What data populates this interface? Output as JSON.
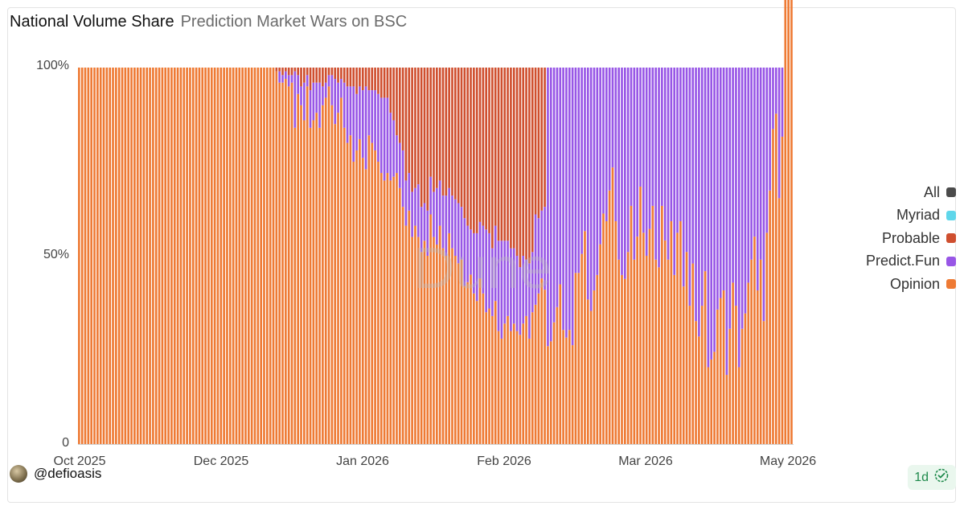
{
  "header": {
    "title": "National Volume Share",
    "subtitle": "Prediction Market Wars on BSC"
  },
  "footer": {
    "author": "@defioasis",
    "refresh": "1d"
  },
  "colors": {
    "Opinion": "#ee7a34",
    "Predict.Fun": "#9856e6",
    "Probable": "#cf4f2f",
    "Myriad": "#5fd6ea",
    "All": "#4b4b4b"
  },
  "legend": [
    {
      "label": "All",
      "color": "#4b4b4b"
    },
    {
      "label": "Myriad",
      "color": "#5fd6ea"
    },
    {
      "label": "Probable",
      "color": "#cf4f2f"
    },
    {
      "label": "Predict.Fun",
      "color": "#9856e6"
    },
    {
      "label": "Opinion",
      "color": "#ee7a34"
    }
  ],
  "watermark": "Dune",
  "chart_data": {
    "type": "bar",
    "stacked": true,
    "normalized": true,
    "title": "National Volume Share",
    "subtitle": "Prediction Market Wars on BSC",
    "y_ticks": [
      "0",
      "50%",
      "100%"
    ],
    "x_ticks": [
      "Oct 2025",
      "Dec 2025",
      "Jan 2026",
      "Feb 2026",
      "Mar 2026",
      "May 2026"
    ],
    "ylim": [
      0,
      100
    ],
    "legend_position": "right",
    "x_range": [
      "2025-10-01",
      "2026-05-01"
    ],
    "series_order": [
      "Opinion",
      "Predict.Fun",
      "Probable",
      "Myriad"
    ],
    "series": [
      {
        "name": "Opinion",
        "values": [
          100,
          100,
          100,
          100,
          100,
          100,
          100,
          100,
          100,
          100,
          100,
          100,
          100,
          100,
          100,
          100,
          100,
          100,
          100,
          100,
          100,
          100,
          100,
          100,
          100,
          100,
          100,
          100,
          100,
          100,
          100,
          100,
          100,
          100,
          100,
          100,
          100,
          100,
          100,
          100,
          100,
          100,
          100,
          100,
          100,
          100,
          100,
          100,
          100,
          100,
          100,
          100,
          100,
          100,
          100,
          100,
          100,
          100,
          100,
          100,
          100,
          100,
          100,
          100,
          99,
          96,
          96,
          97,
          95,
          96,
          84,
          93,
          90,
          86,
          95,
          84,
          86,
          88,
          84,
          90,
          92,
          95,
          90,
          85,
          88,
          92,
          84,
          80,
          82,
          75,
          78,
          81,
          76,
          73,
          82,
          80,
          78,
          75,
          72,
          70,
          72,
          70,
          71,
          72,
          68,
          63,
          58,
          62,
          55,
          58,
          55,
          51,
          54,
          50,
          61,
          55,
          53,
          58,
          52,
          50,
          56,
          52,
          50,
          48,
          49,
          42,
          43,
          45,
          40,
          38,
          44,
          40,
          35,
          36,
          34,
          38,
          30,
          28,
          32,
          34,
          30,
          32,
          30,
          29,
          32,
          34,
          28,
          35,
          37,
          40,
          44,
          41,
          26,
          27,
          32,
          36,
          42,
          30,
          28,
          30,
          26,
          45,
          45,
          50,
          56,
          38,
          35,
          40,
          44,
          52,
          60,
          58,
          66,
          72,
          58,
          48,
          44,
          43,
          50,
          62,
          48,
          54,
          67,
          55,
          49,
          56,
          62,
          48,
          46,
          62,
          53,
          48,
          58,
          44,
          55,
          58,
          41,
          50,
          36,
          47,
          32,
          28,
          36,
          45,
          20,
          22,
          24,
          35,
          38,
          40,
          18,
          30,
          42,
          36,
          20,
          30,
          34,
          42,
          48,
          54,
          40,
          48,
          32,
          55,
          66,
          82,
          86,
          64,
          80,
          58,
          20,
          32
        ]
      },
      {
        "name": "Predict.Fun",
        "values": [
          0,
          0,
          0,
          0,
          0,
          0,
          0,
          0,
          0,
          0,
          0,
          0,
          0,
          0,
          0,
          0,
          0,
          0,
          0,
          0,
          0,
          0,
          0,
          0,
          0,
          0,
          0,
          0,
          0,
          0,
          0,
          0,
          0,
          0,
          0,
          0,
          0,
          0,
          0,
          0,
          0,
          0,
          0,
          0,
          0,
          0,
          0,
          0,
          0,
          0,
          0,
          0,
          0,
          0,
          0,
          0,
          0,
          0,
          0,
          0,
          0,
          0,
          0,
          0,
          0,
          3,
          2,
          2,
          3,
          2,
          15,
          5,
          5,
          10,
          3,
          10,
          10,
          8,
          12,
          5,
          4,
          3,
          8,
          12,
          8,
          5,
          12,
          15,
          13,
          20,
          15,
          14,
          18,
          22,
          12,
          14,
          16,
          18,
          20,
          22,
          20,
          18,
          15,
          10,
          12,
          15,
          12,
          10,
          12,
          10,
          14,
          12,
          10,
          12,
          10,
          12,
          15,
          12,
          14,
          16,
          12,
          14,
          15,
          16,
          14,
          18,
          15,
          12,
          16,
          18,
          15,
          18,
          22,
          20,
          18,
          20,
          24,
          26,
          22,
          20,
          22,
          20,
          20,
          18,
          18,
          15,
          20,
          16,
          24,
          20,
          18,
          22,
          74,
          72,
          67,
          63,
          57,
          69,
          71,
          69,
          73,
          54,
          54,
          49,
          43,
          61,
          64,
          58,
          54,
          46,
          38,
          40,
          32,
          26,
          40,
          50,
          54,
          55,
          48,
          36,
          50,
          44,
          31,
          43,
          49,
          42,
          36,
          50,
          52,
          36,
          45,
          50,
          40,
          54,
          43,
          40,
          57,
          48,
          62,
          51,
          66,
          70,
          62,
          53,
          78,
          76,
          74,
          63,
          60,
          58,
          80,
          68,
          56,
          62,
          78,
          68,
          64,
          56,
          50,
          44,
          58,
          50,
          66,
          43,
          32,
          16,
          12,
          34,
          18,
          40,
          78,
          66
        ]
      },
      {
        "name": "Probable",
        "values": [
          0,
          0,
          0,
          0,
          0,
          0,
          0,
          0,
          0,
          0,
          0,
          0,
          0,
          0,
          0,
          0,
          0,
          0,
          0,
          0,
          0,
          0,
          0,
          0,
          0,
          0,
          0,
          0,
          0,
          0,
          0,
          0,
          0,
          0,
          0,
          0,
          0,
          0,
          0,
          0,
          0,
          0,
          0,
          0,
          0,
          0,
          0,
          0,
          0,
          0,
          0,
          0,
          0,
          0,
          0,
          0,
          0,
          0,
          0,
          0,
          0,
          0,
          0,
          0,
          1,
          1,
          2,
          1,
          2,
          2,
          1,
          2,
          5,
          4,
          2,
          6,
          4,
          4,
          4,
          5,
          4,
          2,
          2,
          3,
          4,
          3,
          4,
          5,
          5,
          5,
          7,
          5,
          6,
          5,
          6,
          6,
          6,
          7,
          8,
          8,
          8,
          12,
          14,
          18,
          20,
          22,
          30,
          28,
          33,
          32,
          31,
          37,
          36,
          38,
          29,
          33,
          32,
          30,
          34,
          34,
          32,
          34,
          35,
          36,
          37,
          40,
          42,
          43,
          44,
          44,
          41,
          42,
          43,
          44,
          48,
          42,
          46,
          46,
          46,
          46,
          48,
          48,
          50,
          53,
          50,
          51,
          52,
          49,
          39,
          40,
          38,
          37,
          0,
          0,
          0,
          0,
          0,
          0,
          0,
          0,
          0,
          0,
          0,
          0,
          0,
          0,
          0,
          0,
          0,
          0,
          0,
          0,
          0,
          0,
          0,
          0,
          0,
          0,
          0,
          0,
          0,
          0,
          0,
          0,
          0,
          0,
          0,
          0,
          0,
          0,
          0,
          0,
          0,
          0,
          0,
          0,
          0,
          0,
          0,
          0,
          0,
          0,
          0,
          0,
          0,
          0,
          0,
          0,
          0,
          0,
          0,
          0,
          0,
          0,
          0,
          0,
          0,
          0,
          0,
          0,
          0,
          0,
          0,
          0,
          0,
          0,
          0,
          0,
          0,
          0
        ]
      },
      {
        "name": "Myriad",
        "values": [
          0,
          0,
          0,
          0,
          0,
          0,
          0,
          0,
          0,
          0,
          0,
          0,
          0,
          0,
          0,
          0,
          0,
          0,
          0,
          0,
          0,
          0,
          0,
          0,
          0,
          0,
          0,
          0,
          0,
          0,
          0,
          0,
          0,
          0,
          0,
          0,
          0,
          0,
          0,
          0,
          0,
          0,
          0,
          0,
          0,
          0,
          0,
          0,
          0,
          0,
          0,
          0,
          0,
          0,
          0,
          0,
          0,
          0,
          0,
          0,
          0,
          0,
          0,
          0,
          0,
          0,
          0,
          0,
          0,
          0,
          0,
          0,
          0,
          0,
          0,
          0,
          0,
          0,
          0,
          0,
          0,
          0,
          0,
          0,
          0,
          0,
          0,
          0,
          0,
          0,
          0,
          0,
          0,
          0,
          0,
          0,
          0,
          0,
          0,
          0,
          0,
          0,
          0,
          0,
          0,
          0,
          0,
          0,
          0,
          0,
          0,
          0,
          0,
          0,
          0,
          0,
          0,
          0,
          0,
          0,
          0,
          0,
          0,
          0,
          0,
          0,
          0,
          0,
          0,
          0,
          0,
          0,
          0,
          0,
          0,
          0,
          0,
          0,
          0,
          0,
          0,
          0,
          0,
          0,
          0,
          0,
          0,
          0,
          0,
          0,
          0,
          0,
          0,
          0,
          0,
          0,
          0,
          0,
          0,
          0,
          0,
          0,
          0,
          0,
          0,
          0,
          0,
          0,
          0,
          0,
          0,
          0,
          0,
          0,
          0,
          0,
          0,
          0,
          0,
          0,
          0,
          0,
          0,
          0,
          0,
          0,
          0,
          0,
          0,
          0,
          0,
          0,
          0,
          0,
          0,
          0,
          0,
          0,
          0,
          0,
          0,
          0,
          0,
          0,
          0,
          0,
          0,
          0,
          0,
          0,
          0,
          0,
          0,
          0,
          0,
          0,
          0,
          0,
          0,
          0,
          0,
          0,
          0,
          0,
          0,
          0,
          0,
          0,
          0
        ]
      }
    ]
  }
}
